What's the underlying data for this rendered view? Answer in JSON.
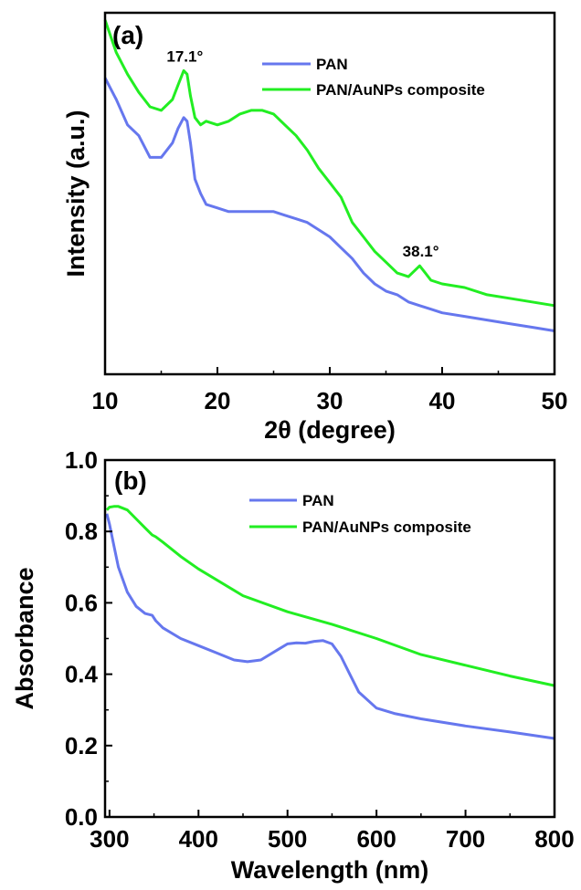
{
  "colors": {
    "pan": "#6677ee",
    "composite": "#22ee22",
    "axis": "#000000"
  },
  "chart_data": [
    {
      "type": "line",
      "panel_label": "(a)",
      "xlabel": "2θ (degree)",
      "ylabel": "Intensity (a.u.)",
      "xlim": [
        10,
        50
      ],
      "ylim": [
        0,
        1
      ],
      "xticks": [
        "10",
        "20",
        "30",
        "40",
        "50"
      ],
      "grid": false,
      "legend_position": "top-right",
      "series": [
        {
          "name": "PAN",
          "color": "#6677ee",
          "x": [
            10,
            11,
            12,
            13,
            14,
            15,
            16,
            16.5,
            17,
            17.3,
            17.6,
            18,
            18.5,
            19,
            20,
            21,
            22,
            23,
            24,
            25,
            26,
            27,
            28,
            29,
            30,
            31,
            32,
            33,
            34,
            35,
            36,
            37,
            38,
            39,
            40,
            42,
            44,
            46,
            48,
            50
          ],
          "y": [
            0.82,
            0.76,
            0.69,
            0.66,
            0.6,
            0.6,
            0.64,
            0.68,
            0.71,
            0.7,
            0.64,
            0.54,
            0.5,
            0.47,
            0.46,
            0.45,
            0.45,
            0.45,
            0.45,
            0.45,
            0.44,
            0.43,
            0.42,
            0.4,
            0.38,
            0.35,
            0.32,
            0.28,
            0.25,
            0.23,
            0.22,
            0.2,
            0.19,
            0.18,
            0.17,
            0.16,
            0.15,
            0.14,
            0.13,
            0.12
          ]
        },
        {
          "name": "PAN/AuNPs composite",
          "color": "#22ee22",
          "x": [
            10,
            11,
            12,
            13,
            14,
            15,
            16,
            16.5,
            17,
            17.3,
            17.6,
            18,
            18.5,
            19,
            20,
            21,
            22,
            23,
            24,
            25,
            26,
            27,
            28,
            29,
            30,
            31,
            32,
            33,
            34,
            35,
            36,
            37,
            38,
            38.5,
            39,
            40,
            42,
            44,
            46,
            48,
            50
          ],
          "y": [
            0.98,
            0.89,
            0.83,
            0.78,
            0.74,
            0.73,
            0.76,
            0.8,
            0.84,
            0.83,
            0.77,
            0.71,
            0.69,
            0.7,
            0.69,
            0.7,
            0.72,
            0.73,
            0.73,
            0.72,
            0.69,
            0.66,
            0.62,
            0.57,
            0.53,
            0.49,
            0.42,
            0.38,
            0.34,
            0.31,
            0.28,
            0.27,
            0.3,
            0.28,
            0.26,
            0.25,
            0.24,
            0.22,
            0.21,
            0.2,
            0.19
          ]
        }
      ],
      "annotations": [
        {
          "text": "17.1°",
          "x": 17.1,
          "y": 0.84
        },
        {
          "text": "38.1°",
          "x": 38.1,
          "y": 0.3
        }
      ]
    },
    {
      "type": "line",
      "panel_label": "(b)",
      "xlabel": "Wavelength (nm)",
      "ylabel": "Absorbance",
      "xlim": [
        295,
        800
      ],
      "ylim": [
        0,
        1.0
      ],
      "xticks": [
        300,
        400,
        500,
        600,
        700,
        800
      ],
      "yticks": [
        0.0,
        0.2,
        0.4,
        0.6,
        0.8,
        1.0
      ],
      "ytick_labels": [
        "0.0",
        "0.2",
        "0.4",
        "0.6",
        "0.8",
        "1.0"
      ],
      "grid": false,
      "legend_position": "top-center",
      "series": [
        {
          "name": "PAN",
          "color": "#6677ee",
          "x": [
            297,
            300,
            305,
            310,
            320,
            330,
            340,
            348,
            352,
            360,
            380,
            400,
            420,
            440,
            455,
            470,
            490,
            500,
            510,
            520,
            530,
            540,
            550,
            560,
            570,
            580,
            600,
            620,
            650,
            700,
            750,
            800
          ],
          "y": [
            0.85,
            0.82,
            0.76,
            0.7,
            0.63,
            0.59,
            0.57,
            0.565,
            0.55,
            0.53,
            0.5,
            0.48,
            0.46,
            0.44,
            0.435,
            0.44,
            0.47,
            0.485,
            0.488,
            0.487,
            0.492,
            0.494,
            0.485,
            0.45,
            0.4,
            0.35,
            0.305,
            0.29,
            0.275,
            0.255,
            0.238,
            0.22
          ]
        },
        {
          "name": "PAN/AuNPs composite",
          "color": "#22ee22",
          "x": [
            297,
            300,
            305,
            310,
            320,
            330,
            340,
            348,
            352,
            360,
            380,
            400,
            450,
            500,
            550,
            600,
            650,
            700,
            750,
            800
          ],
          "y": [
            0.86,
            0.868,
            0.87,
            0.87,
            0.86,
            0.835,
            0.81,
            0.79,
            0.785,
            0.77,
            0.73,
            0.695,
            0.62,
            0.575,
            0.54,
            0.5,
            0.455,
            0.425,
            0.395,
            0.368
          ]
        }
      ],
      "annotations": []
    }
  ]
}
